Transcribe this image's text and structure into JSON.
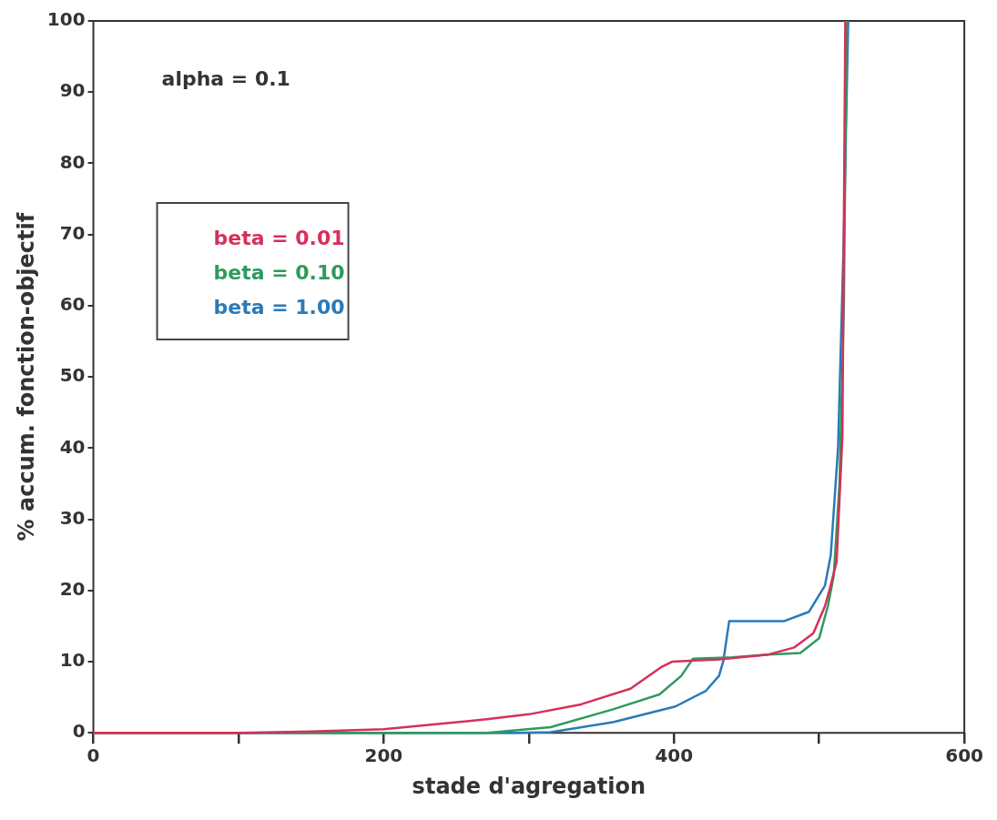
{
  "chart_data": {
    "type": "line",
    "xlabel": "stade d'agregation",
    "ylabel": "% accum. fonction-objectif",
    "annotations": [
      "alpha = 0.1"
    ],
    "legend": "top left",
    "grid": false,
    "marker": "none",
    "line_style": "solid",
    "xlim": [
      0,
      600
    ],
    "xticks": [
      0,
      {
        "value": 100,
        "label": null
      },
      200,
      {
        "value": 300,
        "label": null
      },
      400,
      {
        "value": 500,
        "label": null
      },
      600
    ],
    "ylim": [
      0,
      100
    ],
    "yticks": [
      0,
      10,
      20,
      30,
      40,
      50,
      60,
      70,
      80,
      90,
      100
    ],
    "series": [
      {
        "name": "beta = 0.01",
        "color": "#d6305a",
        "x": [
          0,
          100,
          150,
          200,
          271,
          300,
          336,
          370,
          391,
          399,
          430,
          465,
          483,
          496,
          504,
          507,
          512,
          516,
          518
        ],
        "values": [
          0,
          0,
          0.2,
          0.5,
          1.9,
          2.6,
          4.0,
          6.2,
          9.2,
          10,
          10.3,
          11,
          12,
          14,
          17.8,
          20,
          24,
          41.6,
          100
        ]
      },
      {
        "name": "beta = 0.10",
        "color": "#2e9a5e",
        "x": [
          0,
          271,
          315,
          358,
          390,
          405,
          413,
          440,
          465,
          487,
          500,
          506,
          510,
          514,
          517,
          519
        ],
        "values": [
          0,
          0,
          0.8,
          3.3,
          5.4,
          8,
          10.4,
          10.6,
          11,
          11.2,
          13.3,
          17.8,
          22,
          35,
          60,
          100
        ]
      },
      {
        "name": "beta = 1.00",
        "color": "#2a7ab8",
        "x": [
          0,
          290,
          315,
          358,
          401,
          422,
          431,
          434,
          438,
          476,
          493,
          504,
          508,
          513,
          517,
          520
        ],
        "values": [
          0,
          0,
          0.1,
          1.5,
          3.7,
          5.9,
          8,
          10.1,
          15.7,
          15.7,
          17,
          20.7,
          25,
          40,
          70,
          100
        ]
      }
    ]
  }
}
